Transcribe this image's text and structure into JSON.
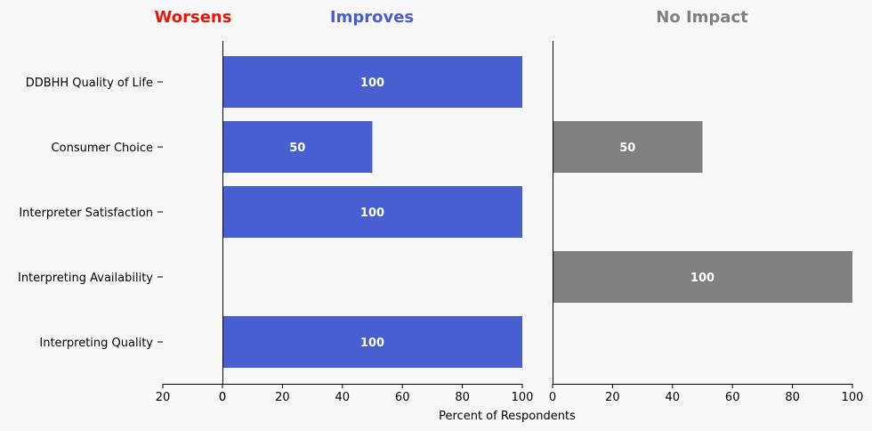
{
  "chart_data": {
    "type": "bar",
    "orientation": "horizontal",
    "categories": [
      "DDBHH Quality of Life",
      "Consumer Choice",
      "Interpreter Satisfaction",
      "Interpreting Availability",
      "Interpreting Quality"
    ],
    "panels": [
      {
        "title": "Worsens",
        "color": "#e8160c",
        "xlim": [
          20,
          0
        ],
        "ticks": [
          20,
          0
        ],
        "values": [
          0,
          0,
          0,
          0,
          0
        ]
      },
      {
        "title": "Improves",
        "color": "#4a5ed1",
        "bar_color": "#485fd1",
        "xlim": [
          0,
          100
        ],
        "ticks": [
          0,
          20,
          40,
          60,
          80,
          100
        ],
        "values": [
          100,
          50,
          100,
          0,
          100
        ]
      },
      {
        "title": "No Impact",
        "color": "#808080",
        "bar_color": "#808080",
        "xlim": [
          0,
          100
        ],
        "ticks": [
          0,
          20,
          40,
          60,
          80,
          100
        ],
        "values": [
          0,
          50,
          0,
          100,
          0
        ]
      }
    ],
    "xlabel": "Percent of Respondents",
    "legend": "none",
    "grid": false
  }
}
